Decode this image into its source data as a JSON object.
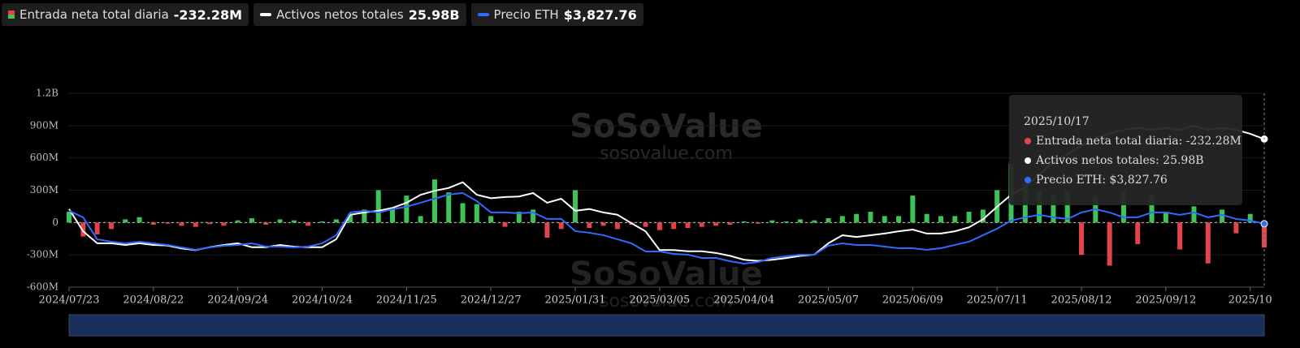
{
  "chart_data": {
    "type": "bar",
    "watermark": {
      "brand": "SoSoValue",
      "site": "sosovalue.com"
    },
    "categories": [
      "2024/07/23",
      null,
      null,
      null,
      null,
      null,
      "2024/08/22",
      null,
      null,
      null,
      null,
      null,
      "2024/09/24",
      null,
      null,
      null,
      null,
      null,
      "2024/10/24",
      null,
      null,
      null,
      null,
      null,
      "2024/11/25",
      null,
      null,
      null,
      null,
      null,
      "2024/12/27",
      null,
      null,
      null,
      null,
      null,
      "2025/01/31",
      null,
      null,
      null,
      null,
      null,
      "2025/03/05",
      null,
      null,
      null,
      null,
      null,
      "2025/04/04",
      null,
      null,
      null,
      null,
      null,
      "2025/05/07",
      null,
      null,
      null,
      null,
      null,
      "2025/06/09",
      null,
      null,
      null,
      null,
      null,
      "2025/07/11",
      null,
      null,
      null,
      null,
      null,
      "2025/08/12",
      null,
      null,
      null,
      null,
      null,
      "2025/09/12",
      null,
      null,
      null,
      null,
      null,
      "2025/10",
      null
    ],
    "ylim": [
      -600,
      1200
    ],
    "yticks": [
      {
        "value": 1200,
        "label": "1.2B"
      },
      {
        "value": 900,
        "label": "900M"
      },
      {
        "value": 600,
        "label": "600M"
      },
      {
        "value": 300,
        "label": "300M"
      },
      0,
      {
        "value": -300,
        "label": "-300M"
      },
      {
        "value": -600,
        "label": "-600M"
      }
    ],
    "y2lim": [
      0,
      34
    ],
    "y3lim": [
      0,
      11700
    ],
    "grid": true,
    "series": [
      {
        "name": "Entrada neta total diaria",
        "latest": "-232.28M",
        "color": "#3dc457",
        "negative_color": "#e5434b",
        "values": [
          100,
          -130,
          -110,
          -60,
          30,
          50,
          -20,
          -10,
          -30,
          -40,
          -15,
          -30,
          20,
          40,
          -20,
          30,
          20,
          -30,
          10,
          30,
          80,
          120,
          300,
          130,
          250,
          60,
          400,
          280,
          180,
          170,
          60,
          -40,
          100,
          120,
          -140,
          -60,
          300,
          -50,
          -30,
          -60,
          -20,
          -40,
          -70,
          -60,
          -50,
          -40,
          -30,
          -20,
          10,
          -10,
          20,
          10,
          30,
          20,
          40,
          60,
          80,
          100,
          60,
          60,
          250,
          80,
          60,
          60,
          100,
          120,
          300,
          550,
          360,
          290,
          260,
          300,
          -300,
          240,
          -400,
          300,
          -200,
          260,
          100,
          -250,
          150,
          -380,
          120,
          -100,
          80,
          -232.28
        ]
      },
      {
        "name": "Activos netos totales",
        "latest": "25.98B",
        "color": "#ffffff",
        "axis": "y2",
        "values": [
          13.7,
          9.8,
          7.7,
          7.7,
          7.4,
          7.7,
          7.4,
          7.3,
          6.8,
          6.5,
          7.0,
          7.4,
          7.7,
          7.0,
          7.0,
          7.4,
          7.1,
          7.0,
          7.0,
          8.4,
          12.7,
          13.1,
          13.4,
          13.9,
          14.8,
          16.2,
          16.9,
          17.4,
          18.4,
          16.2,
          15.6,
          15.8,
          15.9,
          16.5,
          14.8,
          15.5,
          13.4,
          13.7,
          13.1,
          12.7,
          11.2,
          9.8,
          6.5,
          6.5,
          6.3,
          6.3,
          6.0,
          5.5,
          4.8,
          4.6,
          4.8,
          5.1,
          5.5,
          5.7,
          7.7,
          9.1,
          8.8,
          9.1,
          9.4,
          9.8,
          10.1,
          9.4,
          9.4,
          9.8,
          10.5,
          11.9,
          14.1,
          16.2,
          17.6,
          19.8,
          21.9,
          23.3,
          24.8,
          26.2,
          26.9,
          27.6,
          27.9,
          27.6,
          27.9,
          27.6,
          28.3,
          27.6,
          27.9,
          27.6,
          26.9,
          25.98
        ]
      },
      {
        "name": "Precio ETH",
        "latest": "$3,827.76",
        "color": "#2f6bff",
        "axis": "y3",
        "values": [
          4606,
          4214,
          2891,
          2744,
          2646,
          2744,
          2646,
          2548,
          2401,
          2254,
          2401,
          2499,
          2548,
          2646,
          2450,
          2450,
          2401,
          2450,
          2646,
          3136,
          4508,
          4606,
          4508,
          4704,
          4851,
          5096,
          5341,
          5586,
          5684,
          5194,
          4508,
          4508,
          4459,
          4508,
          4116,
          4116,
          3381,
          3283,
          3136,
          2891,
          2646,
          2156,
          2156,
          2009,
          1960,
          1764,
          1764,
          1568,
          1421,
          1519,
          1764,
          1862,
          1960,
          1960,
          2499,
          2646,
          2548,
          2548,
          2450,
          2352,
          2352,
          2254,
          2352,
          2548,
          2744,
          3136,
          3528,
          4018,
          4214,
          4361,
          4214,
          4116,
          4508,
          4704,
          4508,
          4214,
          4214,
          4508,
          4508,
          4361,
          4508,
          4214,
          4361,
          4116,
          4018,
          3827.76
        ]
      }
    ],
    "tooltip": {
      "date": "2025/10/17",
      "lines": [
        "Entrada neta total diaria: -232.28M",
        "Activos netos totales: 25.98B",
        "Precio ETH: $3,827.76"
      ]
    }
  }
}
